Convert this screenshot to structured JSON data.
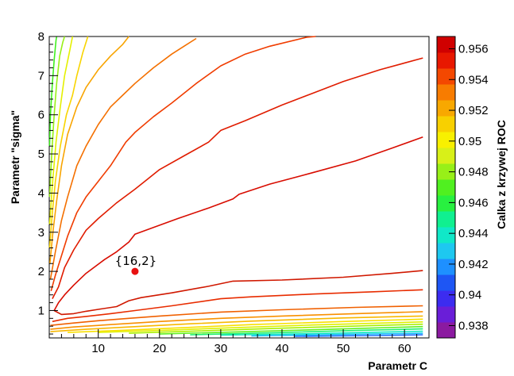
{
  "chart_data": {
    "type": "contour",
    "xlabel": "Parametr C",
    "ylabel": "Parametr \"sigma\"",
    "zlabel": "Calka z krzywej ROC",
    "xlim": [
      2,
      64
    ],
    "ylim": [
      0.3,
      8
    ],
    "zlim": [
      0.9372,
      0.9568
    ],
    "x_ticks": [
      10,
      20,
      30,
      40,
      50,
      60
    ],
    "x_tick_labels": [
      "10",
      "20",
      "30",
      "40",
      "50",
      "60"
    ],
    "y_ticks": [
      1,
      2,
      3,
      4,
      5,
      6,
      7,
      8
    ],
    "y_tick_labels": [
      "1",
      "2",
      "3",
      "4",
      "5",
      "6",
      "7",
      "8"
    ],
    "z_ticks": [
      0.938,
      0.94,
      0.942,
      0.944,
      0.946,
      0.948,
      0.95,
      0.952,
      0.954,
      0.956
    ],
    "z_tick_labels": [
      "0.938",
      "0.94",
      "0.942",
      "0.944",
      "0.946",
      "0.948",
      "0.95",
      "0.952",
      "0.954",
      "0.956"
    ],
    "colors": {
      "palette": [
        "#8b1aa0",
        "#6a1ed8",
        "#3c2cf0",
        "#1e56f4",
        "#1e90ff",
        "#1ec8f0",
        "#10e8c8",
        "#10f090",
        "#28f040",
        "#50f020",
        "#98f018",
        "#d8f018",
        "#f8f000",
        "#f8d000",
        "#f8a800",
        "#f87c00",
        "#f44800",
        "#e81800",
        "#d00000"
      ]
    },
    "grid": false,
    "legend": "colorbar-right",
    "marker": {
      "x": 16,
      "y": 2,
      "label": "{16,2}",
      "color": "#e81010"
    },
    "contours": [
      {
        "color": "#d01800",
        "points": [
          [
            2.8,
            1.0
          ],
          [
            4,
            0.9
          ],
          [
            6,
            0.92
          ],
          [
            8,
            0.98
          ],
          [
            10,
            1.03
          ],
          [
            13,
            1.1
          ],
          [
            15,
            1.25
          ],
          [
            17,
            1.33
          ],
          [
            22,
            1.45
          ],
          [
            28,
            1.62
          ],
          [
            32,
            1.75
          ],
          [
            40,
            1.78
          ],
          [
            50,
            1.85
          ],
          [
            58,
            1.95
          ],
          [
            63,
            2.02
          ]
        ]
      },
      {
        "color": "#e82c00",
        "points": [
          [
            2.5,
            0.72
          ],
          [
            5,
            0.8
          ],
          [
            8,
            0.85
          ],
          [
            12,
            0.92
          ],
          [
            16,
            1.0
          ],
          [
            22,
            1.12
          ],
          [
            30,
            1.3
          ],
          [
            35,
            1.35
          ],
          [
            45,
            1.42
          ],
          [
            55,
            1.48
          ],
          [
            63,
            1.53
          ]
        ]
      },
      {
        "color": "#f06000",
        "points": [
          [
            2.2,
            0.62
          ],
          [
            6,
            0.68
          ],
          [
            10,
            0.74
          ],
          [
            15,
            0.8
          ],
          [
            20,
            0.86
          ],
          [
            30,
            0.96
          ],
          [
            40,
            1.02
          ],
          [
            52,
            1.08
          ],
          [
            63,
            1.12
          ]
        ]
      },
      {
        "color": "#f89000",
        "points": [
          [
            2.2,
            0.52
          ],
          [
            6,
            0.58
          ],
          [
            12,
            0.64
          ],
          [
            20,
            0.72
          ],
          [
            30,
            0.8
          ],
          [
            40,
            0.86
          ],
          [
            52,
            0.92
          ],
          [
            63,
            0.97
          ]
        ]
      },
      {
        "color": "#f8b800",
        "points": [
          [
            2.2,
            0.46
          ],
          [
            8,
            0.52
          ],
          [
            15,
            0.58
          ],
          [
            25,
            0.66
          ],
          [
            35,
            0.73
          ],
          [
            50,
            0.81
          ],
          [
            63,
            0.86
          ]
        ]
      },
      {
        "color": "#f8e000",
        "points": [
          [
            5,
            0.44
          ],
          [
            15,
            0.5
          ],
          [
            25,
            0.57
          ],
          [
            35,
            0.64
          ],
          [
            50,
            0.72
          ],
          [
            63,
            0.78
          ]
        ]
      },
      {
        "color": "#e0f000",
        "points": [
          [
            10,
            0.44
          ],
          [
            20,
            0.49
          ],
          [
            30,
            0.55
          ],
          [
            45,
            0.63
          ],
          [
            63,
            0.71
          ]
        ]
      },
      {
        "color": "#a8f000",
        "points": [
          [
            15,
            0.42
          ],
          [
            25,
            0.47
          ],
          [
            40,
            0.55
          ],
          [
            63,
            0.65
          ]
        ]
      },
      {
        "color": "#60f020",
        "points": [
          [
            20,
            0.4
          ],
          [
            32,
            0.45
          ],
          [
            48,
            0.52
          ],
          [
            63,
            0.59
          ]
        ]
      },
      {
        "color": "#20f070",
        "points": [
          [
            25,
            0.38
          ],
          [
            38,
            0.43
          ],
          [
            52,
            0.49
          ],
          [
            63,
            0.53
          ]
        ]
      },
      {
        "color": "#10e8c0",
        "points": [
          [
            30,
            0.37
          ],
          [
            45,
            0.41
          ],
          [
            63,
            0.47
          ]
        ]
      },
      {
        "color": "#18c0f8",
        "points": [
          [
            35,
            0.35
          ],
          [
            50,
            0.39
          ],
          [
            63,
            0.42
          ]
        ]
      },
      {
        "color": "#2070ff",
        "points": [
          [
            42,
            0.34
          ],
          [
            55,
            0.36
          ],
          [
            63,
            0.38
          ]
        ]
      },
      {
        "color": "#d80c00",
        "points": [
          [
            2.8,
            1.0
          ],
          [
            3.5,
            1.2
          ],
          [
            4.5,
            1.4
          ],
          [
            6,
            1.65
          ],
          [
            8,
            1.95
          ],
          [
            11,
            2.3
          ],
          [
            13,
            2.5
          ],
          [
            15,
            2.75
          ],
          [
            16,
            2.95
          ],
          [
            19,
            3.12
          ],
          [
            23,
            3.35
          ],
          [
            28,
            3.62
          ],
          [
            32,
            3.85
          ],
          [
            33,
            3.97
          ],
          [
            38,
            4.23
          ],
          [
            45,
            4.52
          ],
          [
            52,
            4.82
          ],
          [
            58,
            5.15
          ],
          [
            63,
            5.43
          ]
        ]
      },
      {
        "color": "#e01c00",
        "points": [
          [
            2.5,
            1.3
          ],
          [
            3.5,
            1.6
          ],
          [
            4.5,
            2.1
          ],
          [
            6,
            2.55
          ],
          [
            8,
            3.05
          ],
          [
            10,
            3.35
          ],
          [
            13,
            3.75
          ],
          [
            16,
            4.1
          ],
          [
            18,
            4.35
          ],
          [
            20,
            4.6
          ],
          [
            24,
            4.95
          ],
          [
            28,
            5.3
          ],
          [
            30,
            5.6
          ],
          [
            34,
            5.85
          ],
          [
            40,
            6.25
          ],
          [
            45,
            6.55
          ],
          [
            50,
            6.85
          ],
          [
            56,
            7.15
          ],
          [
            63,
            7.45
          ]
        ]
      },
      {
        "color": "#f03c00",
        "points": [
          [
            2.3,
            1.5
          ],
          [
            3,
            1.9
          ],
          [
            4,
            2.4
          ],
          [
            5,
            2.9
          ],
          [
            6.5,
            3.5
          ],
          [
            8,
            3.9
          ],
          [
            10,
            4.3
          ],
          [
            12,
            4.7
          ],
          [
            14.5,
            5.3
          ],
          [
            16,
            5.55
          ],
          [
            19,
            5.95
          ],
          [
            22,
            6.3
          ],
          [
            26,
            6.8
          ],
          [
            30,
            7.25
          ],
          [
            34,
            7.55
          ],
          [
            38,
            7.75
          ],
          [
            44,
            7.98
          ],
          [
            45.5,
            8.0
          ]
        ]
      },
      {
        "color": "#f47000",
        "points": [
          [
            2.2,
            1.8
          ],
          [
            3,
            2.5
          ],
          [
            4,
            3.3
          ],
          [
            5,
            3.9
          ],
          [
            6.5,
            4.7
          ],
          [
            8,
            5.2
          ],
          [
            10,
            5.75
          ],
          [
            12,
            6.2
          ],
          [
            14,
            6.5
          ],
          [
            16,
            6.8
          ],
          [
            19,
            7.2
          ],
          [
            22,
            7.55
          ],
          [
            24,
            7.75
          ],
          [
            26,
            7.95
          ]
        ]
      },
      {
        "color": "#f8a400",
        "points": [
          [
            2.1,
            2.2
          ],
          [
            2.6,
            3.0
          ],
          [
            3.2,
            3.8
          ],
          [
            4,
            4.7
          ],
          [
            5,
            5.5
          ],
          [
            6.5,
            6.2
          ],
          [
            8,
            6.7
          ],
          [
            10,
            7.15
          ],
          [
            12,
            7.5
          ],
          [
            14,
            7.8
          ],
          [
            15,
            8.0
          ]
        ]
      },
      {
        "color": "#f8d400",
        "points": [
          [
            2.05,
            2.6
          ],
          [
            2.5,
            3.5
          ],
          [
            3,
            4.3
          ],
          [
            3.8,
            5.2
          ],
          [
            4.8,
            6.0
          ],
          [
            5.8,
            6.5
          ],
          [
            6.5,
            7.0
          ],
          [
            7.5,
            7.6
          ],
          [
            8.3,
            8.0
          ]
        ]
      },
      {
        "color": "#e4f000",
        "points": [
          [
            2.05,
            3.2
          ],
          [
            2.5,
            4.2
          ],
          [
            3.1,
            5.3
          ],
          [
            3.8,
            6.2
          ],
          [
            4.5,
            7.0
          ],
          [
            5.3,
            7.6
          ],
          [
            5.8,
            8.0
          ]
        ]
      },
      {
        "color": "#98f018",
        "points": [
          [
            2.05,
            3.9
          ],
          [
            2.4,
            5.0
          ],
          [
            2.8,
            6.0
          ],
          [
            3.2,
            6.8
          ],
          [
            3.7,
            7.5
          ],
          [
            4.2,
            7.85
          ],
          [
            4.5,
            8.0
          ]
        ]
      },
      {
        "color": "#40f020",
        "points": [
          [
            2.05,
            5.2
          ],
          [
            2.2,
            6.0
          ],
          [
            2.5,
            6.8
          ],
          [
            2.8,
            7.4
          ],
          [
            3.1,
            7.9
          ],
          [
            3.2,
            8.0
          ]
        ]
      }
    ]
  }
}
